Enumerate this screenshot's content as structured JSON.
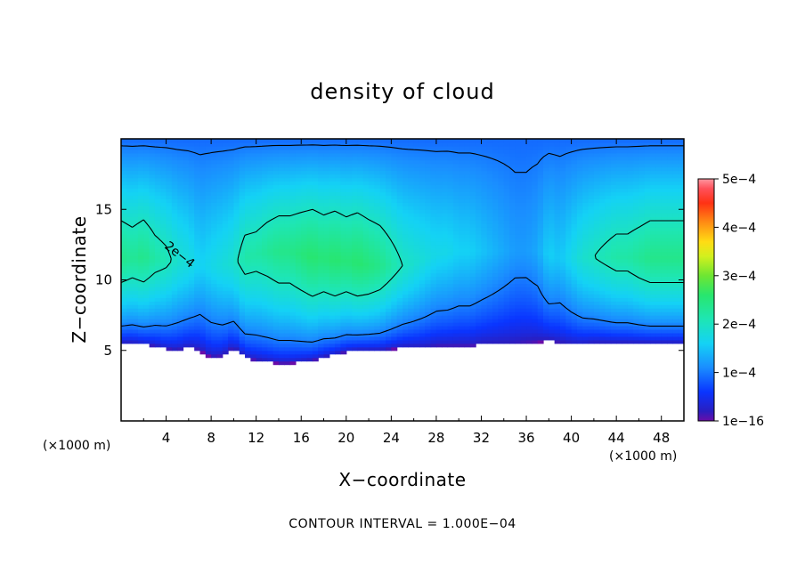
{
  "chart_data": {
    "type": "heatmap",
    "title": "density of cloud",
    "xlabel": "X−coordinate",
    "ylabel": "Z−coordinate",
    "x_unit": "(×1000 m)",
    "footer": "CONTOUR INTERVAL = 1.000E−04",
    "xlim": [
      0,
      50
    ],
    "ylim": [
      0,
      20
    ],
    "x_ticks": [
      "4",
      "8",
      "12",
      "16",
      "20",
      "24",
      "28",
      "32",
      "36",
      "40",
      "44",
      "48"
    ],
    "y_ticks": [
      "5",
      "10",
      "15"
    ],
    "colorbar": {
      "range": [
        0,
        0.0005
      ],
      "ticks": [
        "1e−16",
        "1e−4",
        "2e−4",
        "3e−4",
        "4e−4",
        "5e−4"
      ]
    },
    "contour_labels": [
      "2e−4"
    ],
    "contour_interval": 0.0001,
    "field_profile": {
      "cloud_base_km": [
        5.5,
        5.5,
        5.4,
        5.3,
        5.1,
        5.0,
        5.2,
        5.0,
        4.5,
        4.6,
        5.2,
        4.5,
        4.3,
        4.2,
        4.1,
        4.1,
        4.2,
        4.3,
        4.5,
        4.7,
        4.9,
        5.0,
        5.0,
        5.0,
        5.1,
        5.2,
        5.2,
        5.2,
        5.3,
        5.3,
        5.3,
        5.3,
        5.4,
        5.4,
        5.4,
        5.4,
        5.5,
        5.6,
        5.7,
        5.5,
        5.4,
        5.4,
        5.5,
        5.5,
        5.5,
        5.5,
        5.5,
        5.5,
        5.5,
        5.5,
        5.5
      ],
      "core_density": [
        0.00024,
        0.00023,
        0.00024,
        0.00022,
        0.00021,
        0.00019,
        0.00018,
        0.00016,
        0.00017,
        0.00018,
        0.00019,
        0.00022,
        0.00022,
        0.00023,
        0.00024,
        0.00024,
        0.00025,
        0.00026,
        0.00025,
        0.00026,
        0.00025,
        0.00026,
        0.00025,
        0.00024,
        0.00022,
        0.0002,
        0.00019,
        0.00018,
        0.00017,
        0.00017,
        0.00016,
        0.00016,
        0.00015,
        0.00014,
        0.00013,
        0.00012,
        0.00012,
        0.00013,
        0.00016,
        0.00015,
        0.00017,
        0.00019,
        0.0002,
        0.00021,
        0.00022,
        0.00022,
        0.00023,
        0.00024,
        0.00024,
        0.00024,
        0.00024
      ],
      "core_height_km": [
        11.5,
        11.5,
        11.6,
        11.5,
        11.4,
        11.3,
        11.2,
        11.0,
        11.0,
        11.0,
        11.2,
        11.5,
        11.8,
        12.0,
        12.0,
        12.0,
        11.8,
        11.6,
        11.5,
        11.4,
        11.3,
        11.2,
        11.0,
        11.0,
        11.0,
        11.0,
        11.2,
        11.5,
        11.8,
        12.0,
        12.0,
        12.0,
        12.0,
        12.0,
        12.0,
        12.0,
        12.0,
        12.0,
        11.8,
        11.5,
        11.5,
        11.5,
        11.6,
        11.6,
        11.6,
        11.6,
        11.5,
        11.5,
        11.5,
        11.5,
        11.5
      ]
    }
  }
}
